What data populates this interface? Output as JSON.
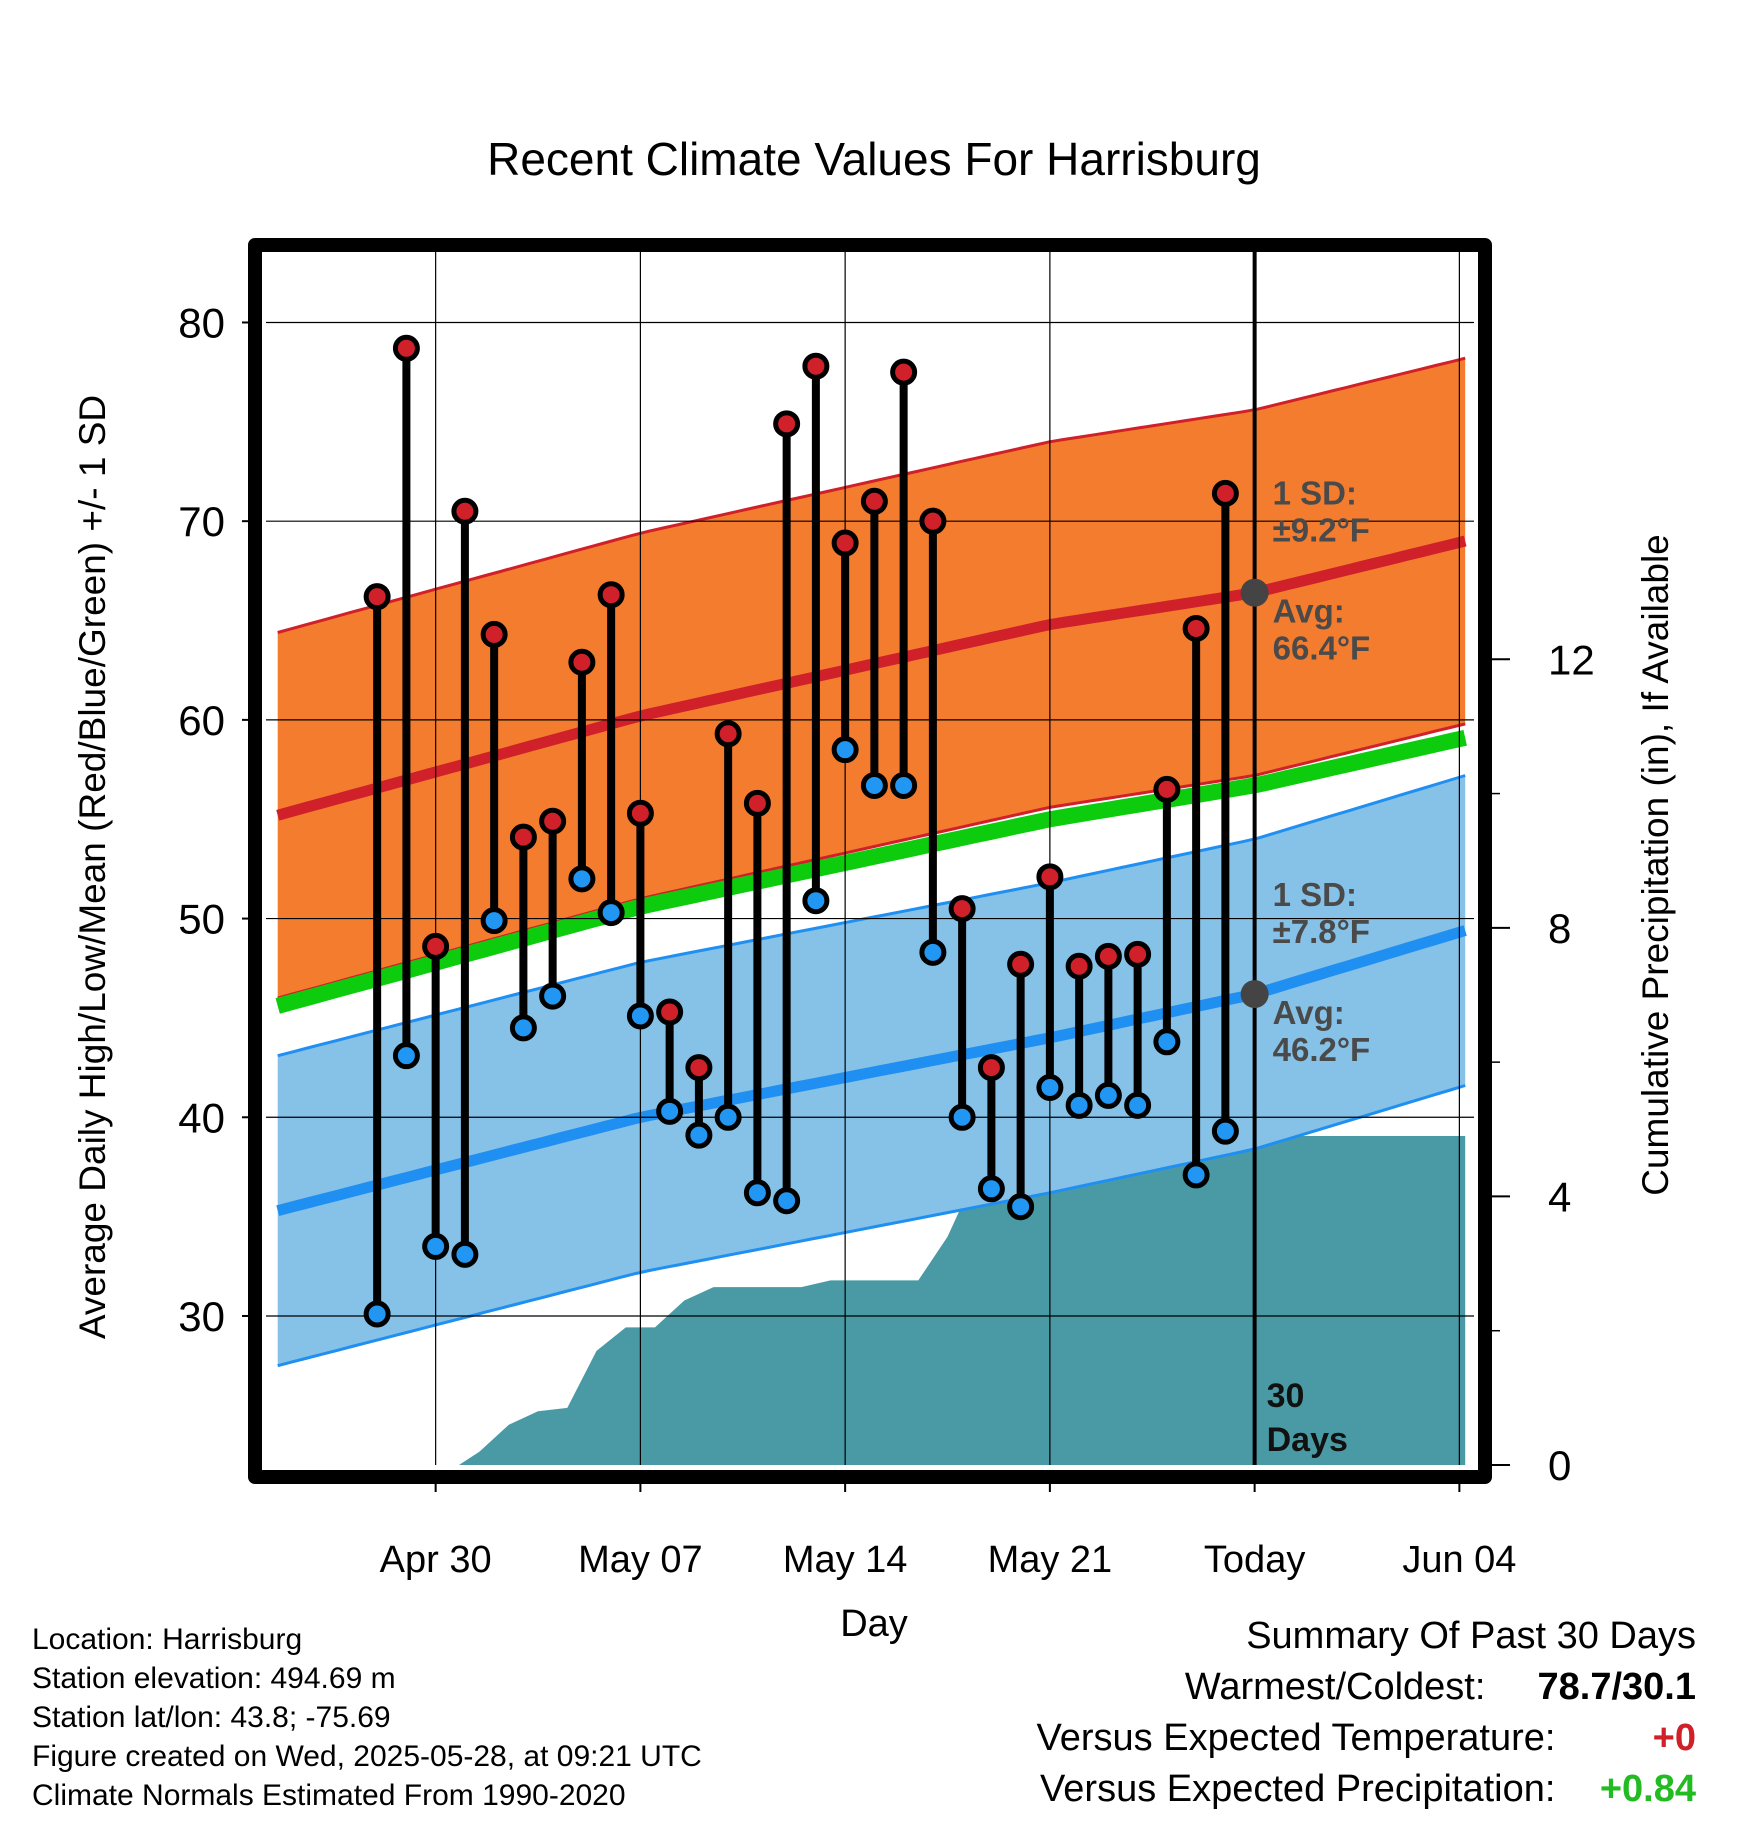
{
  "chart_data": {
    "type": "line",
    "title": "Recent Climate Values For Harrisburg",
    "xlabel": "Day",
    "ylabel_left": "Average Daily High/Low/Mean (Red/Blue/Green) +/- 1 SD",
    "ylabel_right": "Cumulative Precipitation (in), If Available",
    "ylim_left": [
      22.5,
      84
    ],
    "yticks_left": [
      30,
      40,
      50,
      60,
      70,
      80
    ],
    "ylim_right": [
      0,
      18.2
    ],
    "yticks_right": [
      0,
      4,
      8,
      12
    ],
    "xlim": [
      -2.8,
      38.5
    ],
    "x_start_date": "2025-04-27",
    "x_ticks": [
      {
        "day": 3,
        "label": "Apr 30"
      },
      {
        "day": 10,
        "label": "May 07"
      },
      {
        "day": 17,
        "label": "May 14"
      },
      {
        "day": 24,
        "label": "May 21"
      },
      {
        "day": 31,
        "label": "Today"
      },
      {
        "day": 38,
        "label": "Jun 04"
      }
    ],
    "today_day": 31,
    "today_label": [
      "30",
      "Days"
    ],
    "observed_high": [
      66.2,
      78.7,
      48.6,
      70.5,
      64.3,
      54.1,
      54.9,
      62.9,
      66.3,
      55.3,
      45.3,
      42.5,
      59.3,
      55.8,
      74.9,
      77.8,
      68.9,
      71.0,
      77.5,
      70.0,
      50.5,
      42.5,
      47.7,
      52.1,
      47.6,
      48.1,
      48.2,
      56.5,
      64.6,
      71.4
    ],
    "observed_low": [
      30.1,
      43.1,
      33.5,
      33.1,
      49.9,
      44.5,
      46.1,
      52.0,
      50.3,
      45.1,
      40.3,
      39.1,
      40.0,
      36.2,
      35.8,
      50.9,
      58.5,
      56.7,
      56.7,
      48.3,
      40.0,
      36.4,
      35.5,
      41.5,
      40.6,
      41.1,
      40.6,
      43.8,
      37.1,
      39.3
    ],
    "normal_high": [
      {
        "day": -2.4,
        "value": 55.2
      },
      {
        "day": 10,
        "value": 60.2
      },
      {
        "day": 24,
        "value": 64.8
      },
      {
        "day": 31,
        "value": 66.4
      },
      {
        "day": 38.2,
        "value": 69.0
      }
    ],
    "normal_low": [
      {
        "day": -2.4,
        "value": 35.3
      },
      {
        "day": 10,
        "value": 40.0
      },
      {
        "day": 24,
        "value": 44.0
      },
      {
        "day": 31,
        "value": 46.2
      },
      {
        "day": 38.2,
        "value": 49.4
      }
    ],
    "normal_mean": [
      {
        "day": -2.4,
        "value": 45.6
      },
      {
        "day": 10,
        "value": 50.6
      },
      {
        "day": 24,
        "value": 55.0
      },
      {
        "day": 31,
        "value": 56.7
      },
      {
        "day": 38.2,
        "value": 59.1
      }
    ],
    "high_sd": 9.2,
    "low_sd": 7.8,
    "cumulative_precip": [
      {
        "day": 0.5,
        "value": 0
      },
      {
        "day": 3.8,
        "value": 0
      },
      {
        "day": 4.5,
        "value": 0.2
      },
      {
        "day": 5.5,
        "value": 0.6
      },
      {
        "day": 6.5,
        "value": 0.8
      },
      {
        "day": 7.5,
        "value": 0.85
      },
      {
        "day": 8.5,
        "value": 1.7
      },
      {
        "day": 9.5,
        "value": 2.05
      },
      {
        "day": 10.5,
        "value": 2.05
      },
      {
        "day": 11.5,
        "value": 2.45
      },
      {
        "day": 12.5,
        "value": 2.65
      },
      {
        "day": 13.5,
        "value": 2.65
      },
      {
        "day": 14.5,
        "value": 2.65
      },
      {
        "day": 15.5,
        "value": 2.65
      },
      {
        "day": 16.5,
        "value": 2.75
      },
      {
        "day": 17.5,
        "value": 2.75
      },
      {
        "day": 18.5,
        "value": 2.75
      },
      {
        "day": 19.5,
        "value": 2.75
      },
      {
        "day": 20.5,
        "value": 3.4
      },
      {
        "day": 21.5,
        "value": 4.35
      },
      {
        "day": 22.5,
        "value": 4.35
      },
      {
        "day": 23.5,
        "value": 4.35
      },
      {
        "day": 24.5,
        "value": 4.5
      },
      {
        "day": 25.5,
        "value": 4.5
      },
      {
        "day": 26.5,
        "value": 4.75
      },
      {
        "day": 27.5,
        "value": 4.9
      },
      {
        "day": 31,
        "value": 4.9
      },
      {
        "day": 38.2,
        "value": 4.9
      }
    ],
    "grid": true,
    "colors": {
      "high_band": "#f47c2e",
      "high_line": "#d0202a",
      "low_band": "#86c1e7",
      "low_line": "#1f8ff2",
      "mean_line": "#0dcc0d",
      "precip": "#4a9aa6",
      "high_point": "#d0202a",
      "low_point": "#2196f3",
      "normal_marker": "#444444"
    },
    "annotations": {
      "high_sd_label": "1 SD:",
      "high_sd_value": "±9.2°F",
      "high_avg_label": "Avg:",
      "high_avg_value": "66.4°F",
      "low_sd_label": "1 SD:",
      "low_sd_value": "±7.8°F",
      "low_avg_label": "Avg:",
      "low_avg_value": "46.2°F"
    }
  },
  "info": {
    "location": "Location: Harrisburg",
    "elevation": "Station elevation: 494.69 m",
    "latlon": "Station lat/lon: 43.8; -75.69",
    "created": "Figure created on Wed, 2025-05-28, at 09:21 UTC",
    "normals": "Climate Normals Estimated From 1990-2020"
  },
  "summary": {
    "title": "Summary Of Past 30 Days",
    "warm_cold_label": "Warmest/Coldest:",
    "warm_cold_value": "78.7/30.1",
    "temp_label": "Versus Expected Temperature:",
    "temp_value": "+0",
    "temp_color": "#d0202a",
    "precip_label": "Versus Expected Precipitation:",
    "precip_value": "+0.84",
    "precip_color": "#22bb22"
  }
}
